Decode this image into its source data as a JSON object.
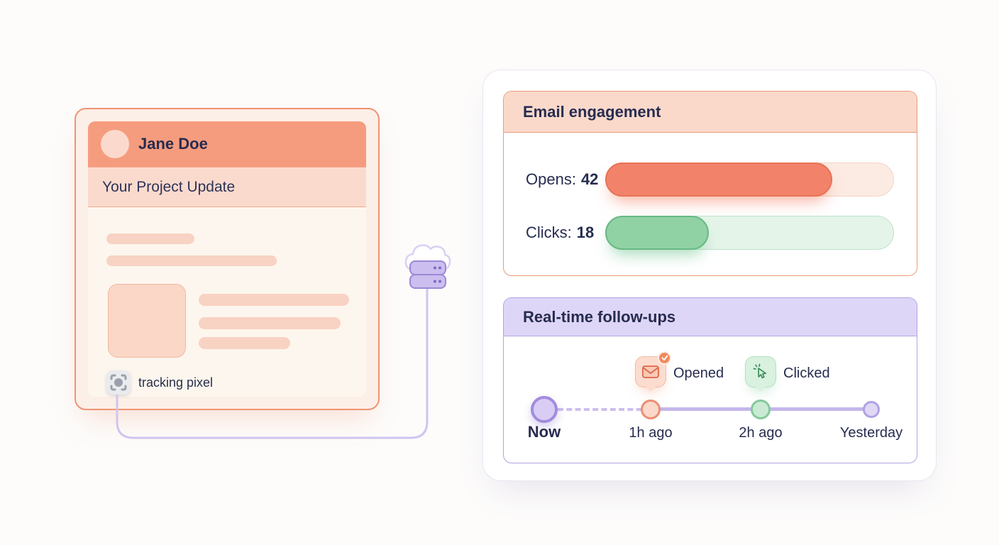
{
  "email_card": {
    "sender_name": "Jane Doe",
    "subject": "Your Project Update",
    "tracking_pixel_label": "tracking pixel"
  },
  "engagement_card": {
    "title": "Email engagement",
    "metrics": [
      {
        "name": "opens",
        "label": "Opens:",
        "value": "42",
        "fill_percent": 79
      },
      {
        "name": "clicks",
        "label": "Clicks:",
        "value": "18",
        "fill_percent": 36
      }
    ]
  },
  "followups_card": {
    "title": "Real-time follow-ups",
    "badges": [
      {
        "label": "Opened",
        "icon": "envelope-icon"
      },
      {
        "label": "Clicked",
        "icon": "cursor-click-icon"
      }
    ],
    "timeline_labels": [
      "Now",
      "1h ago",
      "2h ago",
      "Yesterday"
    ]
  },
  "icons": {
    "middle": "cloud-server-icon",
    "pixel": "tracking-pixel-icon",
    "opened_check": "check-icon"
  },
  "colors": {
    "salmon_fill": "#F2836A",
    "salmon_border": "#E99B7E",
    "peach_header": "#FAD9CB",
    "green_fill": "#90D2A4",
    "green_border": "#69B985",
    "lavender_header": "#DED6F7",
    "purple_border": "#B3A3E3",
    "connector": "#CFC5EF",
    "navy_text": "#272C50"
  }
}
